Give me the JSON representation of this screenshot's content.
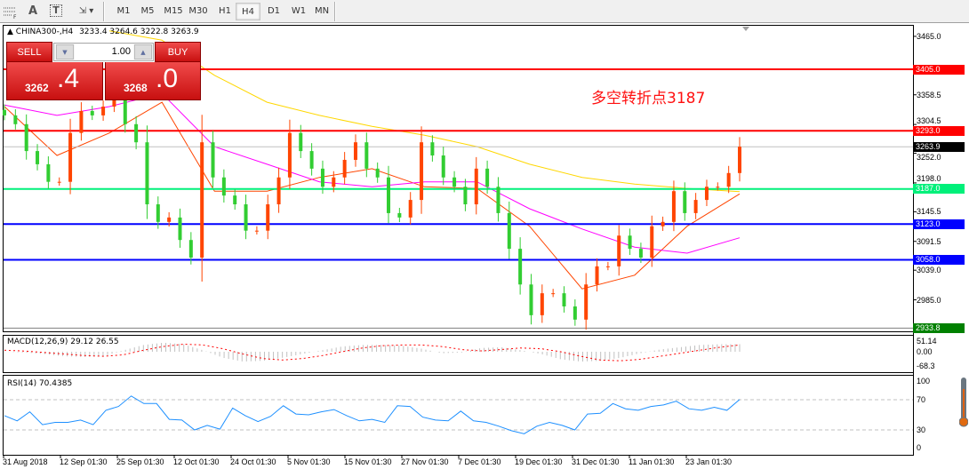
{
  "toolbar": {
    "icons": [
      "grid-f-icon",
      "text-a-icon",
      "text-box-icon",
      "arrows-dropdown-icon"
    ],
    "text_a": "A",
    "text_t": "T",
    "timeframes": [
      "M1",
      "M5",
      "M15",
      "M30",
      "H1",
      "H4",
      "D1",
      "W1",
      "MN"
    ],
    "active_timeframe": "H4"
  },
  "header": {
    "symbol": "CHINA300-,H4",
    "ohlc": "3233.4 3264.6 3222.8 3263.9"
  },
  "trade_panel": {
    "sell_label": "SELL",
    "buy_label": "BUY",
    "volume": "1.00",
    "sell_price_main": "3262",
    "sell_price_frac": ".4",
    "buy_price_main": "3268",
    "buy_price_frac": ".0",
    "sell_color": "#d82020"
  },
  "annotation": "多空转折点3187",
  "price_axis": {
    "ticks": [
      "3465.0",
      "3358.5",
      "3304.5",
      "3252.0",
      "3198.0",
      "3145.5",
      "3091.5",
      "3039.0",
      "2985.0"
    ]
  },
  "levels": [
    {
      "price": 3405.0,
      "label": "3405.0",
      "color": "#ff0000"
    },
    {
      "price": 3293.0,
      "label": "3293.0",
      "color": "#ff0000"
    },
    {
      "price": 3263.9,
      "label": "3263.9",
      "color": "#000000",
      "line": "#c0c0c0"
    },
    {
      "price": 3187.0,
      "label": "3187.0",
      "color": "#00f07a"
    },
    {
      "price": 3123.0,
      "label": "3123.0",
      "color": "#0000ff"
    },
    {
      "price": 3058.0,
      "label": "3058.0",
      "color": "#0000ff"
    },
    {
      "price": 2933.8,
      "label": "2933.8",
      "color": "#008000",
      "noline": true
    }
  ],
  "time_axis": [
    "31 Aug 2018",
    "12 Sep 01:30",
    "25 Sep 01:30",
    "12 Oct 01:30",
    "24 Oct 01:30",
    "5 Nov 01:30",
    "15 Nov 01:30",
    "27 Nov 01:30",
    "7 Dec 01:30",
    "19 Dec 01:30",
    "31 Dec 01:30",
    "11 Jan 01:30",
    "23 Jan 01:30"
  ],
  "macd": {
    "label": "MACD(12,26,9) 29.12 26.55",
    "axis": [
      "51.14",
      "0.00",
      "-68.3"
    ],
    "main": [
      0,
      -5,
      -15,
      -30,
      -35,
      -30,
      10,
      45,
      60,
      50,
      10,
      -40,
      -65,
      -60,
      -40,
      -15,
      10,
      35,
      45,
      45,
      40,
      20,
      -10,
      -5,
      25,
      30,
      10,
      -15,
      -50,
      -65,
      -60,
      -40,
      -10,
      15,
      30,
      45,
      50,
      50
    ],
    "signal": [
      10,
      5,
      -5,
      -15,
      -25,
      -30,
      -20,
      10,
      35,
      50,
      45,
      20,
      -15,
      -45,
      -55,
      -45,
      -25,
      0,
      25,
      40,
      45,
      45,
      35,
      15,
      5,
      15,
      25,
      20,
      0,
      -30,
      -55,
      -60,
      -50,
      -30,
      -10,
      10,
      30,
      45
    ]
  },
  "rsi": {
    "label": "RSI(14) 70.4385",
    "axis": [
      "100",
      "70",
      "30",
      "0"
    ],
    "levels": [
      70,
      30
    ],
    "color": "#1e90ff",
    "values": [
      49,
      42,
      54,
      37,
      40,
      40,
      43,
      37,
      56,
      61,
      75,
      65,
      65,
      44,
      43,
      30,
      36,
      31,
      59,
      49,
      41,
      48,
      62,
      51,
      50,
      54,
      57,
      49,
      42,
      44,
      40,
      62,
      61,
      47,
      43,
      42,
      55,
      42,
      40,
      35,
      29,
      25,
      35,
      40,
      36,
      30,
      51,
      52,
      65,
      58,
      56,
      61,
      63,
      68,
      58,
      56,
      60,
      56,
      70.4
    ]
  },
  "chart_data": {
    "type": "candlestick",
    "symbol": "CHINA300-",
    "timeframe": "H4",
    "up_color": "#ff4500",
    "down_color": "#32cd32",
    "closes": [
      3321,
      3305,
      3256,
      3232,
      3200,
      3200,
      3289,
      3329,
      3321,
      3337,
      3353,
      3305,
      3272,
      3159,
      3127,
      3135,
      3094,
      3062,
      3272,
      3208,
      3175,
      3159,
      3111,
      3111,
      3159,
      3208,
      3289,
      3256,
      3224,
      3191,
      3208,
      3240,
      3272,
      3224,
      3208,
      3143,
      3135,
      3167,
      3272,
      3248,
      3208,
      3191,
      3159,
      3224,
      3191,
      3143,
      3078,
      3013,
      2957,
      2997,
      2997,
      2973,
      2949,
      3013,
      3046,
      3046,
      3102,
      3078,
      3062,
      3119,
      3127,
      3183,
      3143,
      3167,
      3191,
      3191,
      3216,
      3263.9
    ],
    "moving_averages": [
      {
        "color": "#ff4500",
        "values": [
          3337,
          3248,
          3289,
          3345,
          3183,
          3183,
          3208,
          3224,
          3191,
          3188,
          3119,
          3005,
          3030,
          3119,
          3178
        ]
      },
      {
        "color": "#ff00ff",
        "values": [
          3340,
          3321,
          3337,
          3361,
          3264,
          3232,
          3200,
          3191,
          3200,
          3200,
          3151,
          3114,
          3081,
          3070,
          3098
        ]
      },
      {
        "color": "#ffd700",
        "values": [
          null,
          null,
          3475,
          3458,
          3394,
          3345,
          3321,
          3301,
          3285,
          3264,
          3232,
          3208,
          3196,
          3188,
          3182
        ]
      }
    ],
    "ylim": [
      2925,
      3475
    ]
  }
}
